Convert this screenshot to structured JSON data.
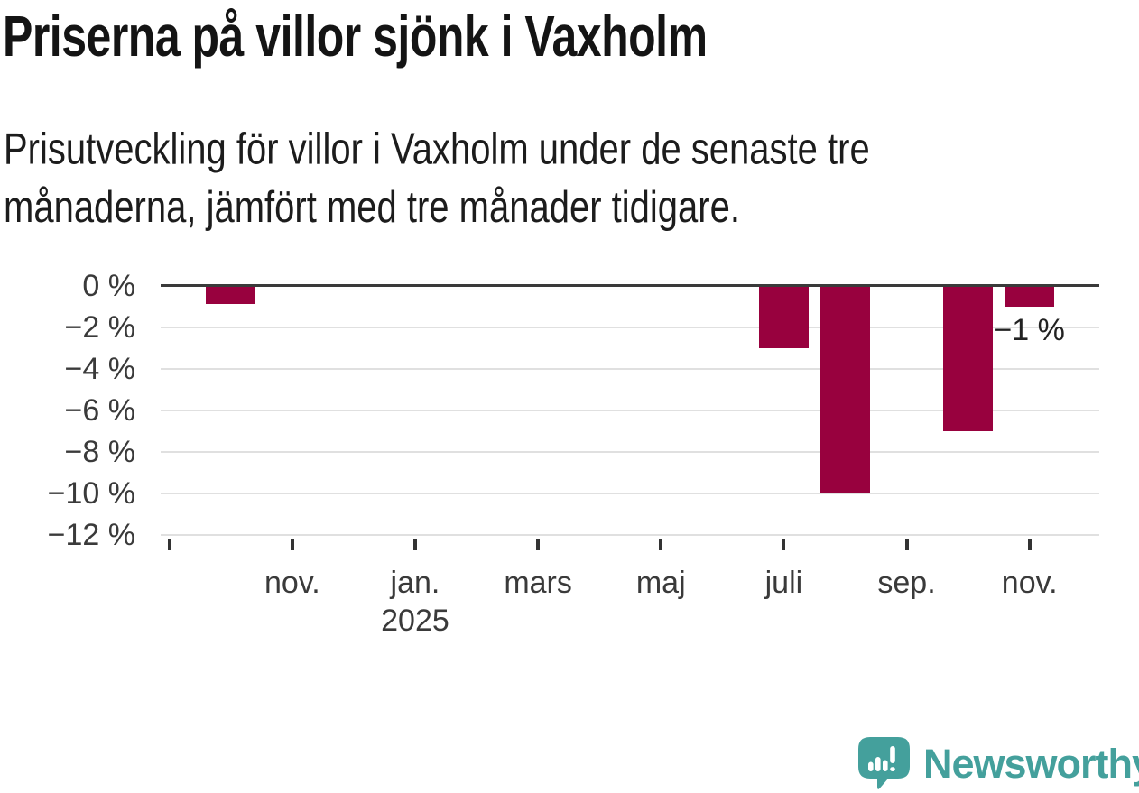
{
  "header": {
    "title": "Priserna på villor sjönk i Vaxholm",
    "subtitle_lines": [
      "Prisutveckling för villor i Vaxholm under de senaste tre",
      "månaderna, jämfört med tre månader tidigare."
    ]
  },
  "chart_data": {
    "type": "bar",
    "x": [
      "sep. 2024",
      "okt. 2024",
      "nov. 2024",
      "dec. 2024",
      "jan. 2025",
      "feb. 2025",
      "mars 2025",
      "apr. 2025",
      "maj 2025",
      "juni 2025",
      "juli 2025",
      "aug. 2025",
      "sep. 2025",
      "okt. 2025",
      "nov. 2025"
    ],
    "values": [
      null,
      -0.9,
      null,
      null,
      null,
      null,
      null,
      null,
      null,
      null,
      -3,
      -10,
      null,
      -7,
      -1
    ],
    "unit": "%",
    "ylim": [
      -12,
      0
    ],
    "yticks": [
      0,
      -2,
      -4,
      -6,
      -8,
      -10,
      -12
    ],
    "ytick_labels": [
      "0 %",
      "−2 %",
      "−4 %",
      "−6 %",
      "−8 %",
      "−10 %",
      "−12 %"
    ],
    "xticks": [
      {
        "index": 0,
        "label": ""
      },
      {
        "index": 2,
        "label": "nov."
      },
      {
        "index": 4,
        "label": "jan.",
        "sublabel": "2025"
      },
      {
        "index": 6,
        "label": "mars"
      },
      {
        "index": 8,
        "label": "maj"
      },
      {
        "index": 10,
        "label": "juli"
      },
      {
        "index": 12,
        "label": "sep."
      },
      {
        "index": 14,
        "label": "nov."
      }
    ],
    "annotation": {
      "text": "−1 %",
      "x_index": 14
    },
    "grid": true,
    "legend": "none"
  },
  "colors": {
    "bar": "#98013e",
    "grid": "#e0e0e0",
    "zero_line": "#3a3a3a",
    "axis_text": "#3a3a3a",
    "title_text": "#141414",
    "brand_teal": "#44a09c"
  },
  "branding": {
    "logo_text": "Newsworthy",
    "logo_icon": "newsworthy-speech-bubble-chart-icon"
  }
}
